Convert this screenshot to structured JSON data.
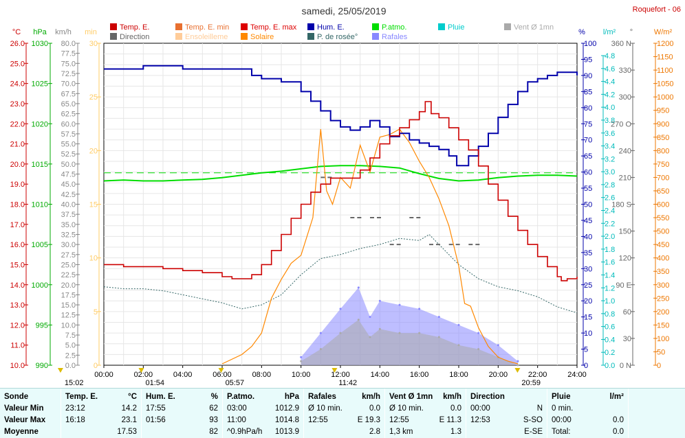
{
  "title": "samedi, 25/05/2019",
  "station": "Roquefort - 06",
  "legend": [
    {
      "label": "Temp. E.",
      "color": "#cc0000"
    },
    {
      "label": "Temp. E. min",
      "color": "#e87030"
    },
    {
      "label": "Temp. E. max",
      "color": "#dd0000"
    },
    {
      "label": "Hum. E.",
      "color": "#0000aa"
    },
    {
      "label": "P.atmo.",
      "color": "#00dd00"
    },
    {
      "label": "Pluie",
      "color": "#00cccc"
    },
    {
      "label": "Vent Ø 1mn",
      "color": "#aaaaaa"
    },
    {
      "label": "Direction",
      "color": "#666666"
    },
    {
      "label": "Ensoleilleme",
      "color": "#ffcc99"
    },
    {
      "label": "Solaire",
      "color": "#ff8800"
    },
    {
      "label": "P. de rosée°",
      "color": "#336666"
    },
    {
      "label": "Rafales",
      "color": "#8888ff"
    }
  ],
  "axes": {
    "temp": {
      "unit": "°C",
      "ticks": [
        "26.0",
        "25.0",
        "24.0",
        "23.0",
        "22.0",
        "21.0",
        "20.0",
        "19.0",
        "18.0",
        "17.0",
        "16.0",
        "15.0",
        "14.0",
        "13.0",
        "12.0",
        "11.0",
        "10.0"
      ],
      "color": "#cc0000"
    },
    "press": {
      "unit": "hPa",
      "ticks": [
        "1030",
        "1025",
        "1020",
        "1015",
        "1010",
        "1005",
        "1000",
        "995",
        "990"
      ],
      "color": "#00aa00"
    },
    "wind": {
      "unit": "km/h",
      "ticks": [
        "80.0",
        "77.5",
        "75.0",
        "72.5",
        "70.0",
        "67.5",
        "65.0",
        "62.5",
        "60.0",
        "57.5",
        "55.0",
        "52.5",
        "50.0",
        "47.5",
        "45.0",
        "42.5",
        "40.0",
        "37.5",
        "35.0",
        "32.5",
        "30.0",
        "27.5",
        "25.0",
        "22.5",
        "20.0",
        "17.5",
        "15.0",
        "12.5",
        "10.0",
        "7.5",
        "5.0",
        "2.5",
        "0.0"
      ],
      "color": "#888888"
    },
    "min": {
      "unit": "min",
      "ticks": [
        "30",
        "25",
        "20",
        "15",
        "10",
        "5",
        "0"
      ],
      "color": "#ffcc66"
    },
    "hum": {
      "unit": "%",
      "ticks": [
        "100",
        "95",
        "90",
        "85",
        "80",
        "75",
        "70",
        "65",
        "60",
        "55",
        "50",
        "45",
        "40",
        "35",
        "30",
        "25",
        "20",
        "15",
        "10",
        "5",
        "0"
      ],
      "color": "#0000aa"
    },
    "rain": {
      "unit": "l/m²",
      "ticks": [
        "4.8",
        "4.6",
        "4.4",
        "4.2",
        "4.0",
        "3.8",
        "3.6",
        "3.4",
        "3.2",
        "3.0",
        "2.8",
        "2.6",
        "2.4",
        "2.2",
        "2.0",
        "1.8",
        "1.6",
        "1.4",
        "1.2",
        "1.0",
        "0.8",
        "0.6",
        "0.4",
        "0.2",
        "0.0"
      ],
      "color": "#00bbbb"
    },
    "dir": {
      "unit": "°",
      "ticks": [
        "360 N",
        "330",
        "300",
        "270 O",
        "240",
        "210",
        "180 S",
        "150",
        "120",
        "90 E",
        "60",
        "30",
        "0 N"
      ],
      "color": "#666666"
    },
    "solar": {
      "unit": "W/m²",
      "ticks": [
        "1200",
        "1150",
        "1100",
        "1050",
        "1000",
        "950",
        "900",
        "850",
        "800",
        "750",
        "700",
        "650",
        "600",
        "550",
        "500",
        "450",
        "400",
        "350",
        "300",
        "250",
        "200",
        "150",
        "100",
        "50",
        "0"
      ],
      "color": "#ee7700"
    },
    "time_ticks": [
      "00:00",
      "02:00",
      "04:00",
      "06:00",
      "08:00",
      "10:00",
      "12:00",
      "14:00",
      "16:00",
      "18:00",
      "20:00",
      "22:00",
      "24:00"
    ],
    "markers": [
      {
        "label": "15:02",
        "hour": -2.2
      },
      {
        "label": "01:54",
        "hour": 1.9
      },
      {
        "label": "05:57",
        "hour": 5.95
      },
      {
        "label": "11:42",
        "hour": 11.7
      },
      {
        "label": "20:59",
        "hour": 20.98
      }
    ]
  },
  "chart_data": {
    "type": "line",
    "title": "samedi, 25/05/2019",
    "xlabel": "",
    "xlim": [
      0,
      24
    ],
    "series": [
      {
        "name": "Temp. E.",
        "unit": "°C",
        "x": [
          0,
          1,
          2,
          3,
          4,
          5,
          6,
          6.5,
          7,
          7.5,
          8,
          8.5,
          9,
          9.5,
          10,
          10.5,
          11,
          11.5,
          12,
          12.5,
          13,
          13.5,
          14,
          14.5,
          15,
          15.5,
          16,
          16.3,
          16.6,
          17,
          17.5,
          18,
          18.5,
          19,
          19.5,
          20,
          20.5,
          21,
          21.5,
          22,
          22.5,
          23,
          23.2,
          23.5,
          24
        ],
        "y": [
          15.0,
          14.9,
          14.9,
          14.8,
          14.7,
          14.6,
          14.4,
          14.3,
          14.3,
          14.5,
          15.0,
          15.7,
          16.5,
          17.3,
          18.0,
          18.6,
          19.0,
          19.3,
          19.3,
          19.3,
          19.7,
          20.3,
          21.0,
          21.4,
          21.8,
          22.2,
          22.6,
          23.1,
          22.5,
          22.3,
          21.8,
          21.2,
          20.7,
          19.9,
          19.0,
          18.2,
          17.4,
          16.7,
          16.0,
          15.4,
          14.9,
          14.4,
          14.2,
          14.3,
          14.4
        ]
      },
      {
        "name": "Hum. E.",
        "unit": "%",
        "x": [
          0,
          1,
          2,
          3,
          4,
          5,
          6,
          7,
          7.5,
          8,
          9,
          10,
          10.5,
          11,
          11.5,
          12,
          12.5,
          13,
          13.5,
          14,
          14.5,
          15,
          15.5,
          16,
          16.5,
          17,
          17.5,
          17.9,
          18.5,
          19,
          19.5,
          20,
          20.5,
          21,
          21.5,
          22,
          22.5,
          23,
          23.5,
          24
        ],
        "y": [
          92,
          92,
          93,
          93,
          92,
          92,
          92,
          92,
          90,
          89,
          88,
          85,
          82,
          79,
          76,
          74,
          73,
          74,
          76,
          74,
          71,
          72,
          70,
          69,
          68,
          67,
          65,
          62,
          65,
          68,
          72,
          77,
          81,
          85,
          88,
          89,
          90,
          91,
          91,
          90
        ]
      },
      {
        "name": "P.atmo.",
        "unit": "hPa",
        "x": [
          0,
          1,
          2,
          3,
          4,
          5,
          6,
          7,
          8,
          9,
          10,
          11,
          12,
          13,
          14,
          15,
          16,
          17,
          18,
          19,
          20,
          21,
          22,
          23,
          24
        ],
        "y": [
          1012.9,
          1013.0,
          1012.9,
          1012.9,
          1013.0,
          1013.1,
          1013.3,
          1013.6,
          1013.9,
          1014.1,
          1014.4,
          1014.7,
          1014.8,
          1014.8,
          1014.7,
          1014.5,
          1013.8,
          1013.2,
          1012.9,
          1013.0,
          1013.3,
          1013.5,
          1013.6,
          1013.6,
          1013.5
        ]
      },
      {
        "name": "Solaire",
        "unit": "W/m²",
        "x": [
          6,
          7,
          7.5,
          8,
          8.5,
          9,
          9.5,
          10,
          10.3,
          10.6,
          11,
          11.3,
          11.6,
          12,
          12.5,
          13,
          13.5,
          14,
          14.5,
          15,
          15.5,
          16,
          16.5,
          17,
          17.5,
          18,
          18.3,
          18.6,
          19,
          19.5,
          20,
          20.5,
          21
        ],
        "y": [
          5,
          40,
          70,
          120,
          250,
          320,
          380,
          410,
          480,
          550,
          880,
          650,
          600,
          700,
          660,
          820,
          720,
          850,
          860,
          880,
          830,
          760,
          700,
          620,
          520,
          370,
          230,
          220,
          140,
          70,
          30,
          15,
          5
        ]
      },
      {
        "name": "P. de rosée°",
        "unit": "°C",
        "x": [
          0,
          1,
          2,
          3,
          4,
          5,
          6,
          7,
          8,
          9,
          10,
          11,
          12,
          13,
          14,
          15,
          16,
          16.5,
          17,
          18,
          19,
          20,
          21,
          22,
          23,
          24
        ],
        "y": [
          13.9,
          13.8,
          13.8,
          13.7,
          13.5,
          13.3,
          13.1,
          12.8,
          13.0,
          13.5,
          14.5,
          15.3,
          15.5,
          15.8,
          16.0,
          16.3,
          16.2,
          16.5,
          16.0,
          15.0,
          14.3,
          13.9,
          13.7,
          13.4,
          12.9,
          12.6
        ]
      },
      {
        "name": "Direction",
        "unit": "°",
        "x": [
          11,
          12.5,
          13.5,
          14.5,
          15.5,
          16.5,
          17.5,
          18.5
        ],
        "y": [
          210,
          165,
          165,
          135,
          165,
          135,
          135,
          135
        ]
      },
      {
        "name": "Rafales",
        "unit": "km/h",
        "x": [
          10,
          11,
          12,
          12.917,
          13.5,
          14,
          15,
          16,
          17,
          18,
          19,
          20,
          21
        ],
        "y": [
          2,
          8,
          14,
          19.3,
          12,
          16,
          15,
          14,
          12,
          10,
          8,
          5,
          1
        ]
      },
      {
        "name": "Vent Ø 1mn",
        "unit": "km/h",
        "x": [
          10,
          11,
          12,
          12.917,
          13.5,
          14,
          15,
          16,
          17,
          18,
          19,
          20,
          21
        ],
        "y": [
          1,
          4,
          8,
          11.3,
          7,
          9,
          8,
          8,
          7,
          5,
          4,
          2,
          0
        ]
      }
    ]
  },
  "table": {
    "headers": [
      [
        "Sonde",
        ""
      ],
      [
        "Temp. E.",
        "°C"
      ],
      [
        "Hum. E.",
        "%"
      ],
      [
        "P.atmo.",
        "hPa"
      ],
      [
        "Rafales",
        "km/h"
      ],
      [
        "Vent Ø 1mn",
        "km/h"
      ],
      [
        "Direction",
        ""
      ],
      [
        "Pluie",
        "l/m²"
      ]
    ],
    "row_labels": [
      "Valeur Min",
      "Valeur Max",
      "Moyenne"
    ],
    "temp": [
      [
        "23:12",
        "14.2"
      ],
      [
        "16:18",
        "23.1"
      ],
      [
        "",
        "17.53"
      ]
    ],
    "hum": [
      [
        "17:55",
        "62"
      ],
      [
        "01:56",
        "93"
      ],
      [
        "",
        "82"
      ]
    ],
    "press": [
      [
        "03:00",
        "1012.9"
      ],
      [
        "11:00",
        "1014.8"
      ],
      [
        "^0.9hPa/h",
        "1013.9"
      ]
    ],
    "raf": [
      [
        "Ø 10 min.",
        "0.0"
      ],
      [
        "12:55",
        "E 19.3"
      ],
      [
        "",
        "2.8"
      ]
    ],
    "vent": [
      [
        "Ø 10 min.",
        "0.0"
      ],
      [
        "12:55",
        "E 11.3"
      ],
      [
        "1,3 km",
        "1.3"
      ]
    ],
    "dir": [
      [
        "00:00",
        "N"
      ],
      [
        "12:53",
        "S-SO"
      ],
      [
        "",
        "E-SE"
      ]
    ],
    "pluie": [
      [
        "0 min.",
        ""
      ],
      [
        "00:00",
        "0.0"
      ],
      [
        "Total:",
        "0.0"
      ]
    ]
  }
}
